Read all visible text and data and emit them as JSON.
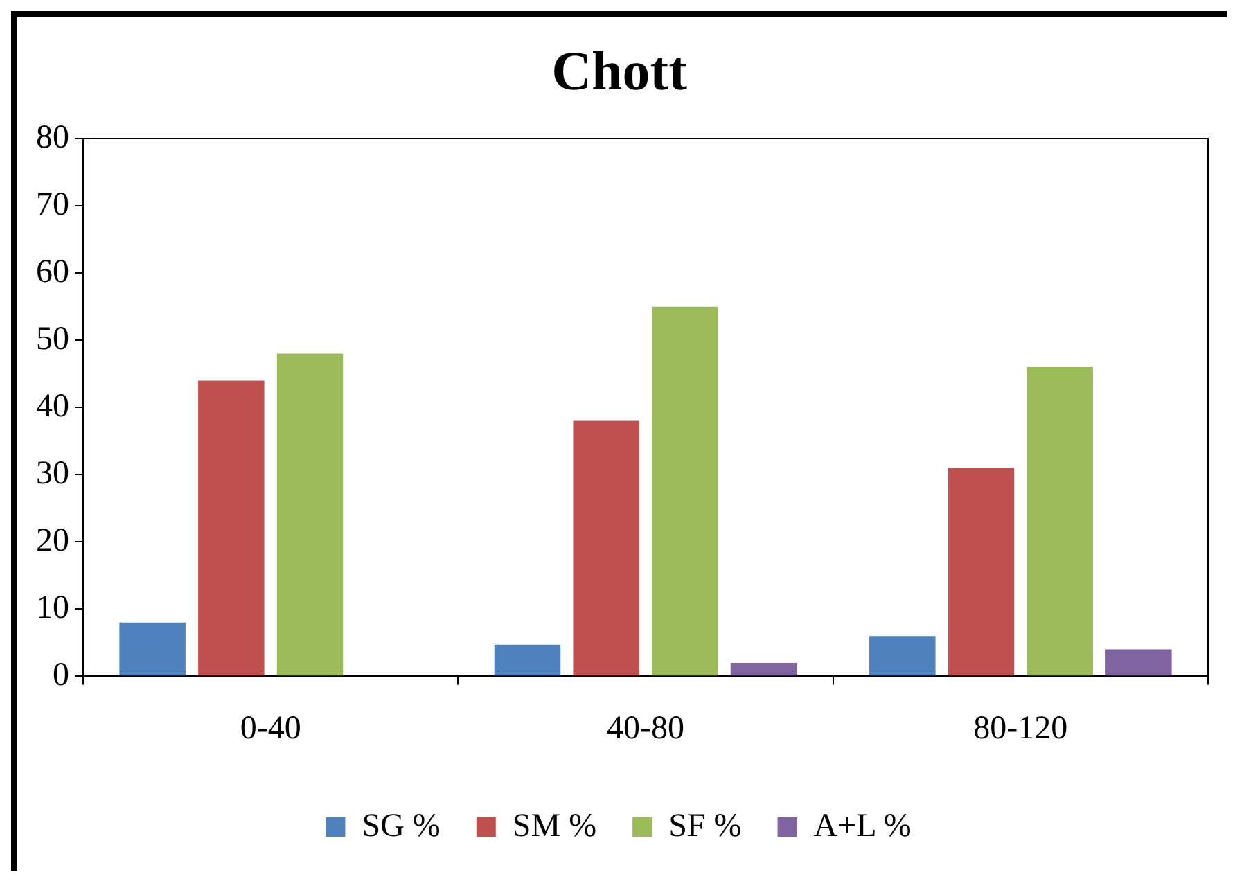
{
  "chart_data": {
    "type": "bar",
    "title": "Chott",
    "categories": [
      "0-40",
      "40-80",
      "80-120"
    ],
    "series": [
      {
        "name": "SG %",
        "color": "#4f81bd",
        "values": [
          8,
          4.7,
          6
        ]
      },
      {
        "name": "SM %",
        "color": "#c0504d",
        "values": [
          44,
          38,
          31
        ]
      },
      {
        "name": "SF %",
        "color": "#9bbb59",
        "values": [
          48,
          55,
          46
        ]
      },
      {
        "name": "A+L %",
        "color": "#8064a2",
        "values": [
          0,
          2,
          4
        ]
      }
    ],
    "ylim": [
      0,
      80
    ],
    "yticks": [
      0,
      10,
      20,
      30,
      40,
      50,
      60,
      70,
      80
    ],
    "grid": false,
    "legend": "bottom"
  }
}
